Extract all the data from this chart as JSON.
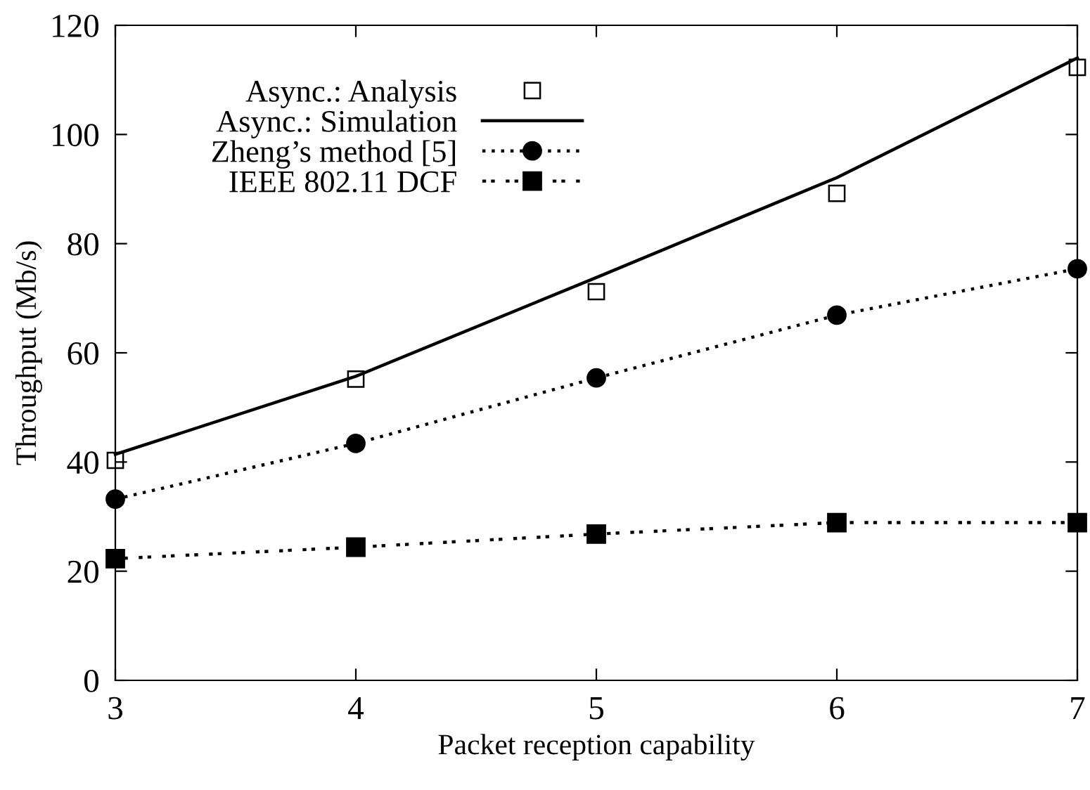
{
  "chart_data": {
    "type": "line",
    "xlabel": "Packet reception capability",
    "ylabel": "Throughput (Mb/s)",
    "x": [
      3,
      4,
      5,
      6,
      7
    ],
    "xlim": [
      3,
      7
    ],
    "xticks": [
      3,
      4,
      5,
      6,
      7
    ],
    "ylim": [
      0,
      120
    ],
    "yticks": [
      0,
      20,
      40,
      60,
      80,
      100,
      120
    ],
    "grid": false,
    "legend": "top left",
    "series": [
      {
        "name": "Async.: Analysis",
        "type": "scatter",
        "color": "#000000",
        "marker": "square",
        "values": [
          40.3,
          55.2,
          71.2,
          89.2,
          112.3
        ]
      },
      {
        "name": "Async.: Simulation",
        "color": "#000000",
        "marker": "none",
        "line_style": "solid",
        "values": [
          41.4,
          55.7,
          73.8,
          92.1,
          114.0
        ]
      },
      {
        "name": "Zheng’s method [5]",
        "color": "#000000",
        "marker": "circle",
        "line_style": "dotted",
        "values": [
          33.2,
          43.4,
          55.4,
          66.9,
          75.4
        ]
      },
      {
        "name": "IEEE 802.11 DCF",
        "color": "#000000",
        "marker": "square",
        "line_style": "dashed",
        "values": [
          22.3,
          24.4,
          26.8,
          28.9,
          28.9
        ]
      }
    ]
  }
}
